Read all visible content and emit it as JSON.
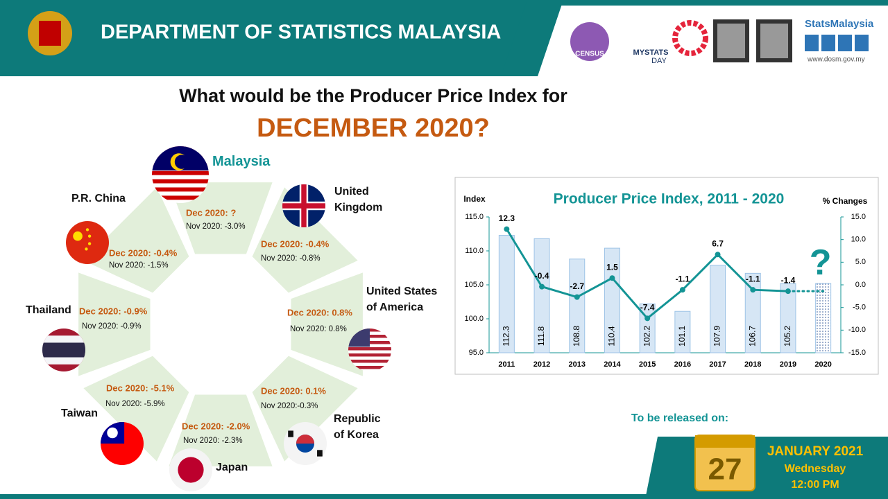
{
  "header": {
    "title": "DEPARTMENT OF STATISTICS MALAYSIA",
    "brand": "StatsMalaysia",
    "url": "www.dosm.gov.my",
    "mystats": "MYSTATS",
    "day": "DAY",
    "census": "CENSUS"
  },
  "question": {
    "line1": "What would be the Producer Price Index for",
    "line2": "DECEMBER 2020?"
  },
  "countries": [
    {
      "name": "Malaysia",
      "dec": "Dec 2020: ?",
      "nov": "Nov 2020: -3.0%"
    },
    {
      "name": "United Kingdom",
      "dec": "Dec 2020: -0.4%",
      "nov": "Nov 2020: -0.8%"
    },
    {
      "name": "United States of America",
      "dec": "Dec 2020: 0.8%",
      "nov": "Nov 2020: 0.8%"
    },
    {
      "name": "Republic of Korea",
      "dec": "Dec 2020: 0.1%",
      "nov": "Nov 2020:-0.3%"
    },
    {
      "name": "Japan",
      "dec": "Dec 2020: -2.0%",
      "nov": "Nov 2020: -2.3%"
    },
    {
      "name": "Taiwan",
      "dec": "Dec 2020: -5.1%",
      "nov": "Nov 2020: -5.9%"
    },
    {
      "name": "Thailand",
      "dec": "Dec 2020: -0.9%",
      "nov": "Nov 2020: -0.9%"
    },
    {
      "name": "P.R. China",
      "dec": "Dec 2020: -0.4%",
      "nov": "Nov 2020: -1.5%"
    }
  ],
  "chart_data": {
    "type": "bar_line",
    "title": "Producer Price Index, 2011 - 2020",
    "y_label": "Index",
    "y2_label": "% Changes",
    "categories": [
      "2011",
      "2012",
      "2013",
      "2014",
      "2015",
      "2016",
      "2017",
      "2018",
      "2019",
      "2020"
    ],
    "series": [
      {
        "type": "bar",
        "color": "#d6e6f5",
        "values": [
          112.3,
          111.8,
          108.8,
          110.4,
          102.2,
          101.1,
          107.9,
          106.7,
          105.2,
          null
        ]
      },
      {
        "type": "line",
        "axis": "y2",
        "color": "#139495",
        "values": [
          12.3,
          -0.4,
          -2.7,
          1.5,
          -7.4,
          -1.1,
          6.7,
          -1.1,
          -1.4,
          null
        ]
      }
    ],
    "ylim": [
      95,
      115
    ],
    "yticks": [
      {
        "value": 95,
        "label": "95.0"
      },
      {
        "value": 100,
        "label": "100.0"
      },
      {
        "value": 105,
        "label": "105.0"
      },
      {
        "value": 110,
        "label": "110.0"
      },
      {
        "value": 115,
        "label": "115.0"
      }
    ],
    "y2lim": [
      -15,
      15
    ],
    "y2ticks": [
      {
        "value": -15,
        "label": "-15.0"
      },
      {
        "value": -10,
        "label": "-10.0"
      },
      {
        "value": -5,
        "label": "-5.0"
      },
      {
        "value": 0,
        "label": "0.0"
      },
      {
        "value": 5,
        "label": "5.0"
      },
      {
        "value": 10,
        "label": "10.0"
      },
      {
        "value": 15,
        "label": "15.0"
      }
    ]
  },
  "release": {
    "label": "To be released on:",
    "day": "27",
    "month": "JANUARY 2021",
    "weekday": "Wednesday",
    "time": "12:00 PM"
  }
}
